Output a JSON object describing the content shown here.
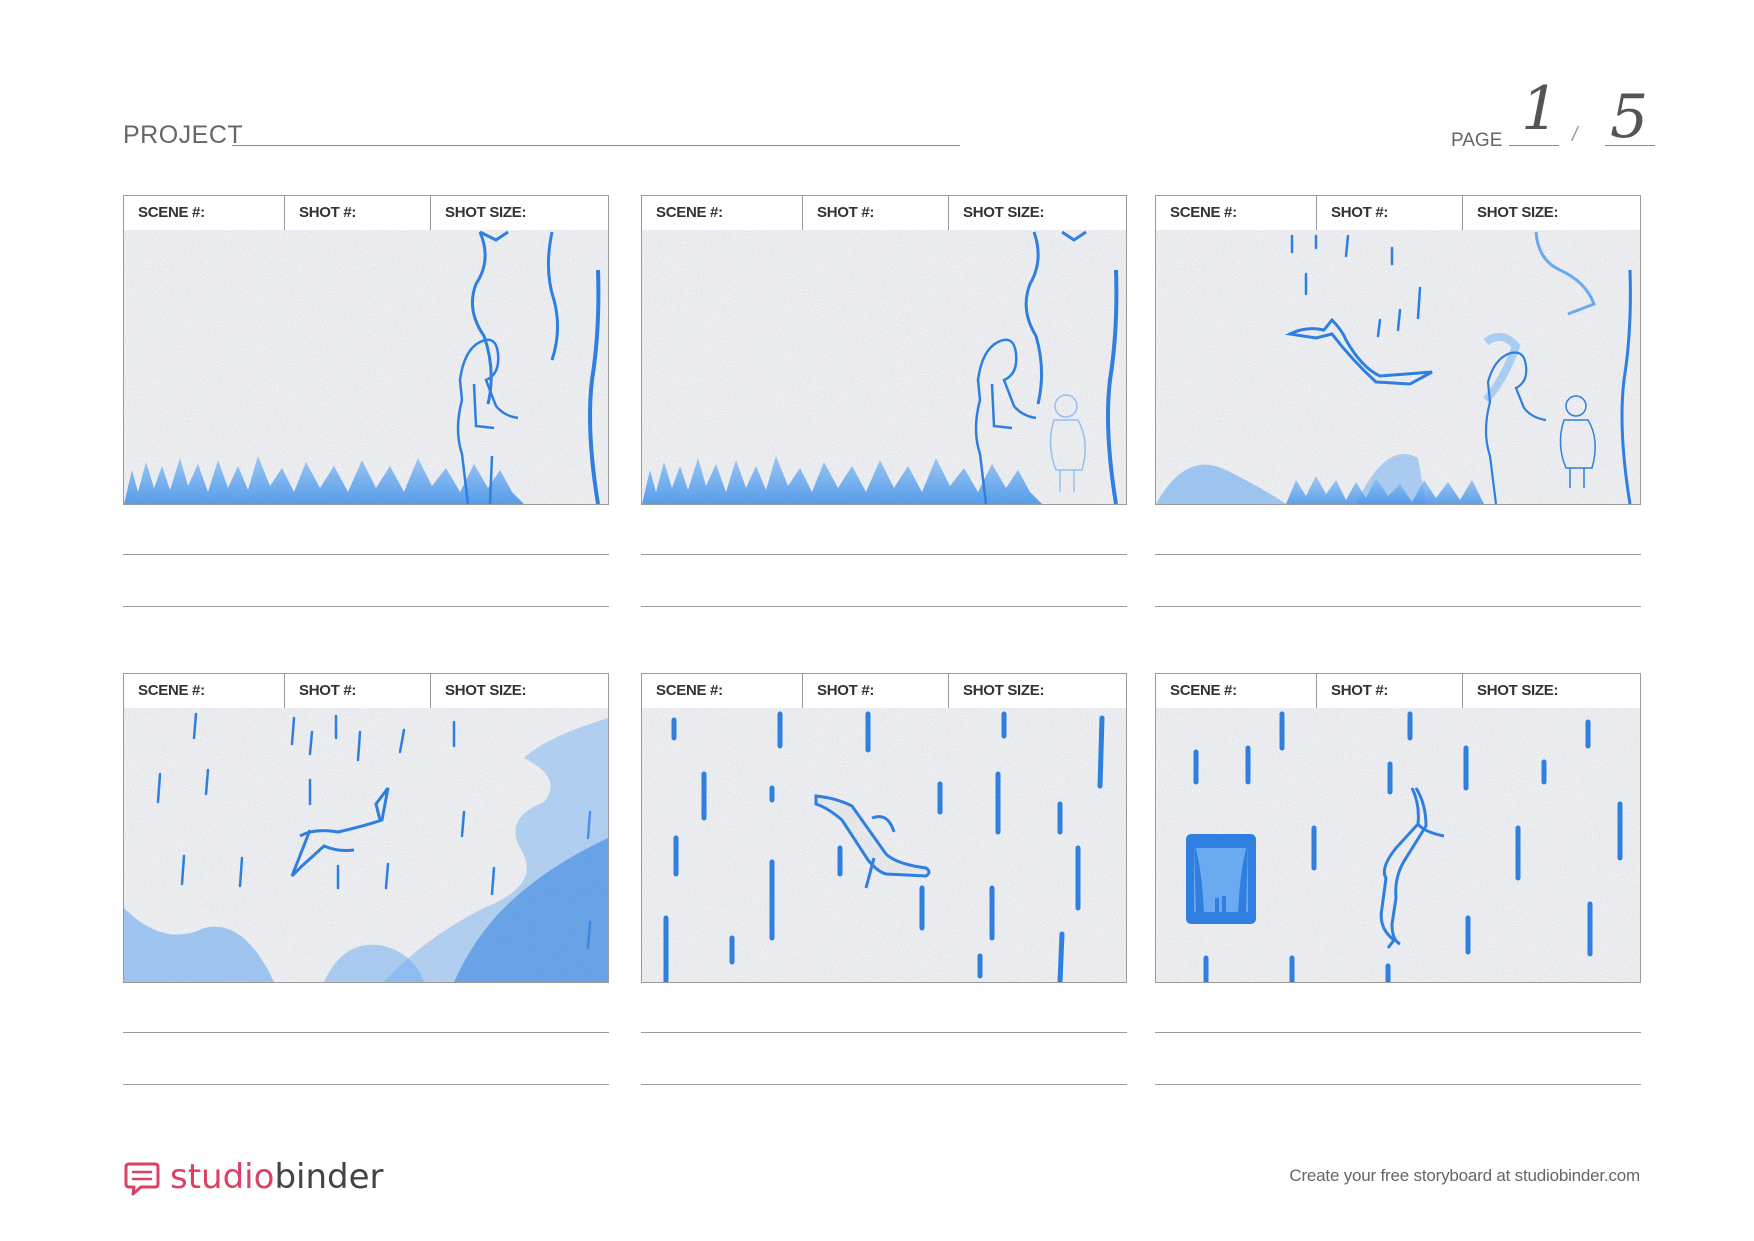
{
  "header": {
    "project_label": "PROJECT",
    "page_label": "PAGE",
    "page_current": "1",
    "page_separator": "/",
    "page_total": "5"
  },
  "panel_labels": {
    "scene": "SCENE #:",
    "shot": "SHOT #:",
    "shot_size": "SHOT SIZE:"
  },
  "panels": [
    {
      "scene": "",
      "shot": "",
      "shot_size": "",
      "illustration": "man-at-tree-in-grass"
    },
    {
      "scene": "",
      "shot": "",
      "shot_size": "",
      "illustration": "man-and-girl-at-tree"
    },
    {
      "scene": "",
      "shot": "",
      "shot_size": "",
      "illustration": "figure-flying-in-rain"
    },
    {
      "scene": "",
      "shot": "",
      "shot_size": "",
      "illustration": "figure-in-swirling-rain"
    },
    {
      "scene": "",
      "shot": "",
      "shot_size": "",
      "illustration": "figure-falling-in-rain"
    },
    {
      "scene": "",
      "shot": "",
      "shot_size": "",
      "illustration": "figure-and-window-in-rain"
    }
  ],
  "footer": {
    "brand_part1": "studio",
    "brand_part2": "binder",
    "cta": "Create your free storyboard at studiobinder.com"
  },
  "colors": {
    "sketch_blue": "#2f7fe0",
    "brand_pink": "#d94165",
    "frame_bg": "#e4e6ea"
  }
}
